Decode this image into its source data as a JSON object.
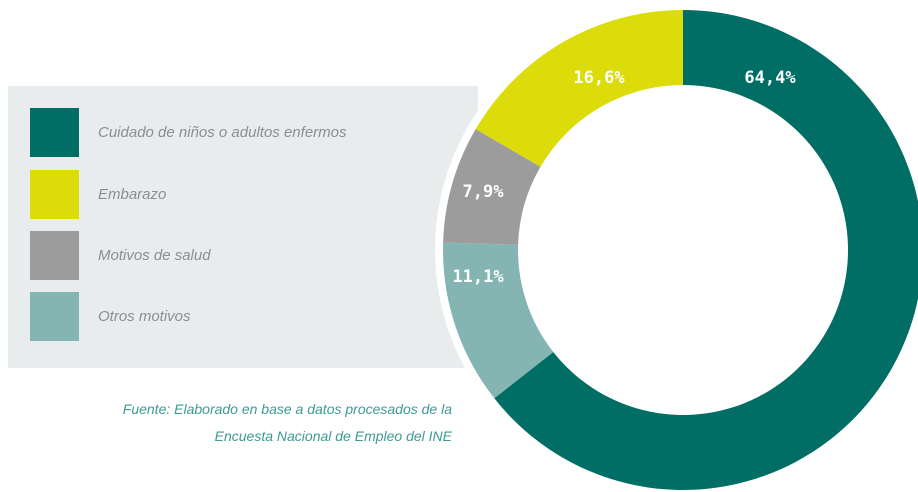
{
  "chart_data": {
    "type": "donut",
    "categories": [
      "Cuidado de niños o adultos enfermos",
      "Embarazo",
      "Motivos de salud",
      "Otros motivos"
    ],
    "values": [
      64.4,
      16.6,
      7.9,
      11.1
    ],
    "value_labels": [
      "64,4%",
      "16,6%",
      "7,9%",
      "11,1%"
    ],
    "colors": [
      "#006e65",
      "#dcdc0a",
      "#9c9c9c",
      "#84b5b2"
    ],
    "source": [
      "Fuente: Elaborado en base a datos procesados de la",
      "Encuesta Nacional de Empleo del INE"
    ]
  }
}
